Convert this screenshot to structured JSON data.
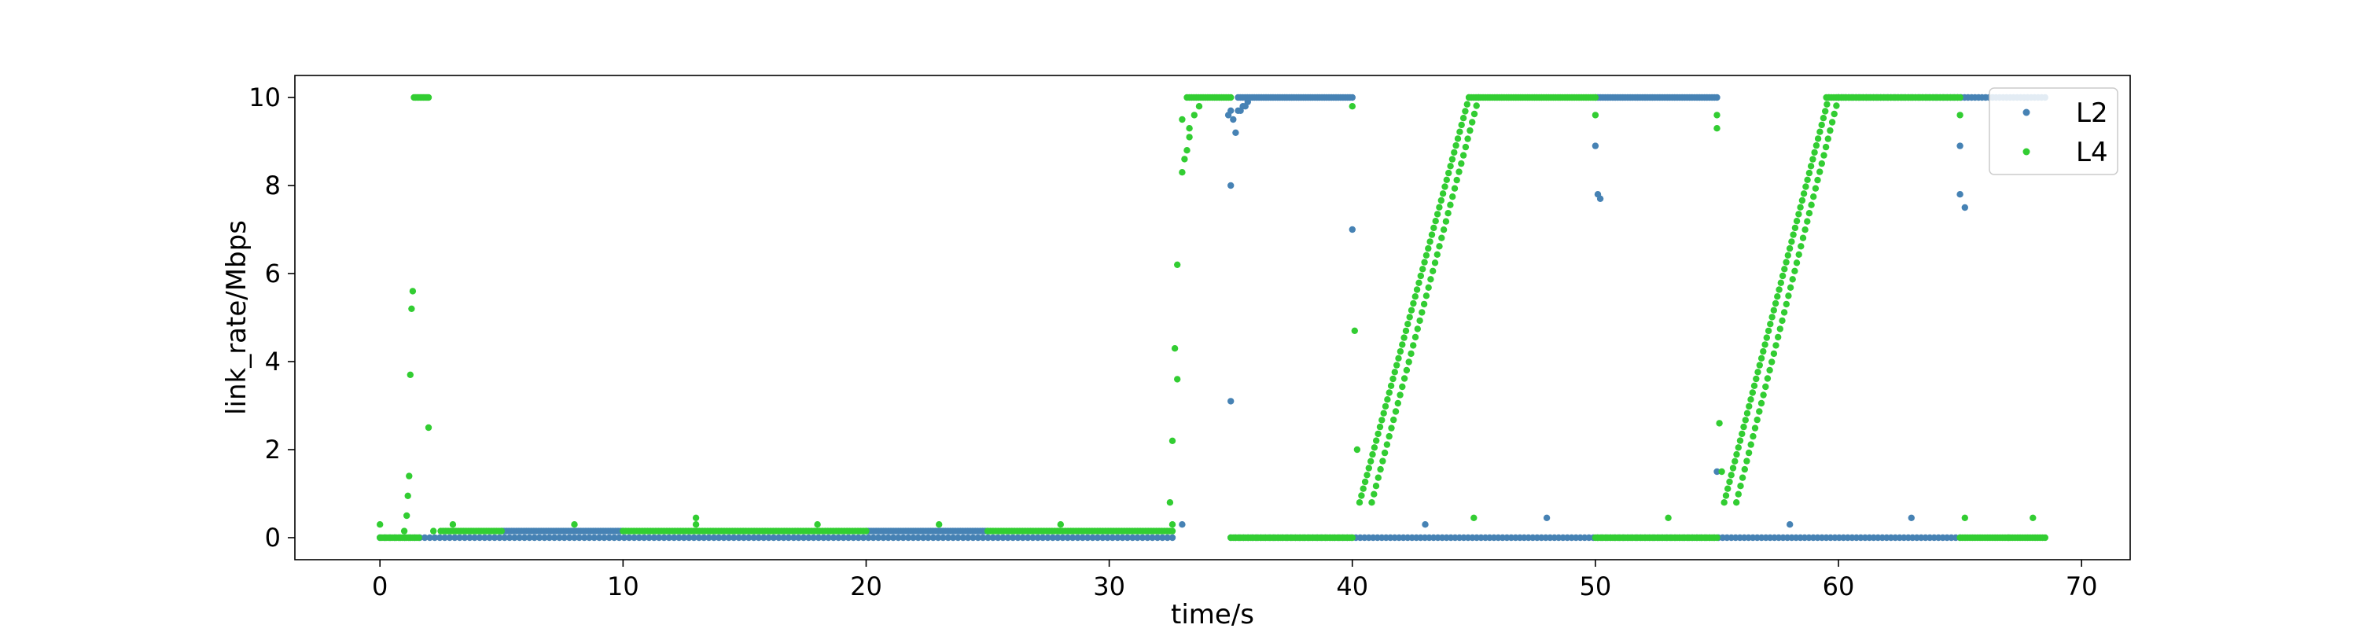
{
  "chart_data": {
    "type": "scatter",
    "xlabel": "time/s",
    "ylabel": "link_rate/Mbps",
    "xlim": [
      -3.5,
      72
    ],
    "ylim": [
      -0.5,
      10.5
    ],
    "xticks": [
      0,
      10,
      20,
      30,
      40,
      50,
      60,
      70
    ],
    "yticks": [
      0,
      2,
      4,
      6,
      8,
      10
    ],
    "grid": false,
    "legend": "top-right",
    "colors": {
      "L2": "#4682b4",
      "L4": "#32cd32"
    },
    "series": [
      {
        "name": "L2",
        "color": "#4682b4",
        "segments": [
          {
            "x0": 0.0,
            "x1": 32.6,
            "y": 0.0,
            "n": 160
          },
          {
            "x0": 5.0,
            "x1": 10.0,
            "y": 0.15,
            "n": 50
          },
          {
            "x0": 20.0,
            "x1": 25.0,
            "y": 0.15,
            "n": 50
          },
          {
            "x0": 35.3,
            "x1": 40.0,
            "y": 10.0,
            "n": 50
          },
          {
            "x0": 35.0,
            "x1": 65.0,
            "y": 0.0,
            "n": 170
          },
          {
            "x0": 50.0,
            "x1": 55.0,
            "y": 10.0,
            "n": 50
          },
          {
            "x0": 60.0,
            "x1": 68.5,
            "y": 10.0,
            "n": 60
          }
        ],
        "points": [
          [
            33.0,
            0.3
          ],
          [
            35.0,
            8.0
          ],
          [
            34.9,
            9.6
          ],
          [
            35.0,
            9.7
          ],
          [
            35.1,
            9.5
          ],
          [
            35.2,
            9.2
          ],
          [
            35.3,
            9.7
          ],
          [
            35.4,
            9.7
          ],
          [
            35.5,
            9.8
          ],
          [
            35.6,
            9.8
          ],
          [
            35.7,
            9.9
          ],
          [
            35.0,
            3.1
          ],
          [
            40.0,
            7.0
          ],
          [
            43.0,
            0.3
          ],
          [
            48.0,
            0.45
          ],
          [
            50.0,
            8.9
          ],
          [
            50.1,
            7.8
          ],
          [
            50.2,
            7.7
          ],
          [
            55.0,
            1.5
          ],
          [
            58.0,
            0.3
          ],
          [
            63.0,
            0.45
          ],
          [
            65.0,
            8.9
          ],
          [
            65.0,
            7.8
          ],
          [
            65.2,
            7.5
          ]
        ]
      },
      {
        "name": "L4",
        "color": "#32cd32",
        "segments": [
          {
            "x0": 0.0,
            "x1": 1.6,
            "y": 0.0,
            "n": 20
          },
          {
            "x0": 1.4,
            "x1": 2.0,
            "y": 10.0,
            "n": 10
          },
          {
            "x0": 2.5,
            "x1": 5.0,
            "y": 0.15,
            "n": 25
          },
          {
            "x0": 10.0,
            "x1": 20.0,
            "y": 0.15,
            "n": 90
          },
          {
            "x0": 25.0,
            "x1": 32.6,
            "y": 0.15,
            "n": 70
          },
          {
            "x0": 33.2,
            "x1": 35.0,
            "y": 10.0,
            "n": 20
          },
          {
            "x0": 35.0,
            "x1": 40.0,
            "y": 0.0,
            "n": 50
          },
          {
            "x0": 44.8,
            "x1": 50.0,
            "y": 10.0,
            "n": 55
          },
          {
            "x0": 50.0,
            "x1": 55.0,
            "y": 0.0,
            "n": 50
          },
          {
            "x0": 59.5,
            "x1": 65.0,
            "y": 10.0,
            "n": 55
          },
          {
            "x0": 65.0,
            "x1": 68.5,
            "y": 0.0,
            "n": 35
          }
        ],
        "ramps": [
          {
            "x0": 40.3,
            "x1": 44.8,
            "y0": 0.8,
            "y1": 10.0,
            "n": 60
          },
          {
            "x0": 40.8,
            "x1": 45.2,
            "y0": 0.8,
            "y1": 10.0,
            "n": 50
          },
          {
            "x0": 55.3,
            "x1": 59.6,
            "y0": 0.8,
            "y1": 10.0,
            "n": 60
          },
          {
            "x0": 55.8,
            "x1": 60.0,
            "y0": 0.8,
            "y1": 10.0,
            "n": 50
          }
        ],
        "points": [
          [
            0.0,
            0.3
          ],
          [
            1.0,
            0.15
          ],
          [
            1.1,
            0.5
          ],
          [
            1.15,
            0.95
          ],
          [
            1.2,
            1.4
          ],
          [
            1.25,
            3.7
          ],
          [
            1.3,
            5.2
          ],
          [
            1.35,
            5.6
          ],
          [
            2.0,
            2.5
          ],
          [
            2.2,
            0.15
          ],
          [
            3.0,
            0.3
          ],
          [
            8.0,
            0.3
          ],
          [
            13.0,
            0.45
          ],
          [
            13.0,
            0.3
          ],
          [
            18.0,
            0.3
          ],
          [
            23.0,
            0.3
          ],
          [
            28.0,
            0.3
          ],
          [
            32.5,
            0.8
          ],
          [
            32.6,
            2.2
          ],
          [
            32.7,
            4.3
          ],
          [
            32.8,
            6.2
          ],
          [
            32.8,
            3.6
          ],
          [
            32.6,
            0.3
          ],
          [
            33.0,
            8.3
          ],
          [
            33.1,
            8.6
          ],
          [
            33.2,
            8.8
          ],
          [
            33.3,
            9.1
          ],
          [
            33.5,
            9.6
          ],
          [
            33.7,
            9.8
          ],
          [
            33.0,
            9.5
          ],
          [
            33.3,
            9.3
          ],
          [
            40.0,
            9.8
          ],
          [
            40.1,
            4.7
          ],
          [
            40.2,
            2.0
          ],
          [
            45.0,
            0.45
          ],
          [
            50.0,
            9.6
          ],
          [
            53.0,
            0.45
          ],
          [
            55.0,
            9.6
          ],
          [
            55.0,
            9.3
          ],
          [
            55.1,
            2.6
          ],
          [
            55.2,
            1.5
          ],
          [
            65.0,
            9.6
          ],
          [
            65.2,
            0.45
          ],
          [
            68.0,
            0.45
          ],
          [
            67.0,
            0.0
          ]
        ]
      }
    ]
  }
}
